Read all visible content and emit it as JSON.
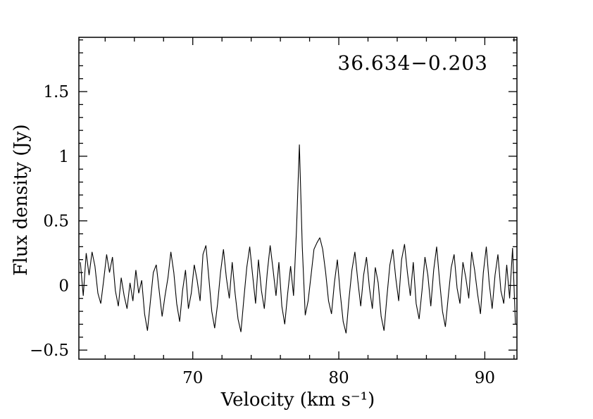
{
  "figure": {
    "source_name": "36.634−0.203",
    "xlabel": "Velocity (km s⁻¹)",
    "ylabel": "Flux density (Jy)"
  },
  "colors": {
    "foreground": "#000000",
    "background": "#ffffff"
  },
  "chart_data": {
    "type": "line",
    "title": "36.634−0.203",
    "xlabel": "Velocity (km s⁻¹)",
    "ylabel": "Flux density (Jy)",
    "xlim": [
      62.2,
      92.2
    ],
    "ylim": [
      -0.57,
      1.92
    ],
    "grid": false,
    "legend": false,
    "frame": "box-with-inward-ticks",
    "xticks": [
      {
        "v": 70,
        "label": "70"
      },
      {
        "v": 80,
        "label": "80"
      },
      {
        "v": 90,
        "label": "90"
      }
    ],
    "yticks": [
      {
        "v": -0.5,
        "label": "−0.5"
      },
      {
        "v": 0,
        "label": "0"
      },
      {
        "v": 0.5,
        "label": "0.5"
      },
      {
        "v": 1,
        "label": "1"
      },
      {
        "v": 1.5,
        "label": "1.5"
      }
    ],
    "xtick_minor_step": 2,
    "ytick_minor_step": 0.1,
    "line_color": "#000000",
    "peak": {
      "velocity_kms": 77.3,
      "flux_jy": 1.09
    },
    "series": [
      {
        "name": "spectrum",
        "x_start": 62.3,
        "x_step": 0.2,
        "values": [
          0.18,
          -0.08,
          0.25,
          0.08,
          0.26,
          0.15,
          -0.06,
          -0.14,
          0.04,
          0.24,
          0.1,
          0.22,
          -0.04,
          -0.16,
          0.06,
          -0.08,
          -0.18,
          0.02,
          -0.12,
          0.12,
          -0.06,
          0.04,
          -0.22,
          -0.35,
          -0.12,
          0.1,
          0.16,
          -0.04,
          -0.24,
          -0.08,
          0.06,
          0.26,
          0.1,
          -0.14,
          -0.28,
          -0.04,
          0.12,
          -0.18,
          -0.06,
          0.16,
          0.04,
          -0.12,
          0.24,
          0.31,
          0.06,
          -0.2,
          -0.33,
          -0.14,
          0.1,
          0.28,
          0.06,
          -0.1,
          0.18,
          -0.06,
          -0.26,
          -0.36,
          -0.1,
          0.14,
          0.3,
          0.08,
          -0.14,
          0.2,
          -0.04,
          -0.18,
          0.1,
          0.31,
          0.12,
          -0.08,
          0.18,
          -0.16,
          -0.3,
          -0.06,
          0.15,
          -0.08,
          0.42,
          1.09,
          0.3,
          -0.23,
          -0.12,
          0.08,
          0.28,
          0.33,
          0.37,
          0.28,
          0.1,
          -0.12,
          -0.22,
          0.02,
          0.2,
          -0.06,
          -0.28,
          -0.37,
          -0.1,
          0.12,
          0.26,
          0.04,
          -0.16,
          0.08,
          0.22,
          -0.02,
          -0.18,
          0.14,
          0.02,
          -0.24,
          -0.35,
          -0.08,
          0.16,
          0.28,
          0.06,
          -0.12,
          0.2,
          0.32,
          0.1,
          -0.08,
          0.18,
          -0.14,
          -0.26,
          -0.04,
          0.22,
          0.08,
          -0.16,
          0.12,
          0.3,
          0.04,
          -0.2,
          -0.32,
          -0.08,
          0.14,
          0.24,
          -0.02,
          -0.14,
          0.18,
          0.06,
          -0.1,
          0.26,
          0.12,
          -0.06,
          -0.22,
          0.1,
          0.3,
          0.02,
          -0.18,
          0.08,
          0.24,
          -0.04,
          -0.14,
          0.16,
          -0.1,
          0.29,
          -0.3
        ]
      }
    ]
  }
}
